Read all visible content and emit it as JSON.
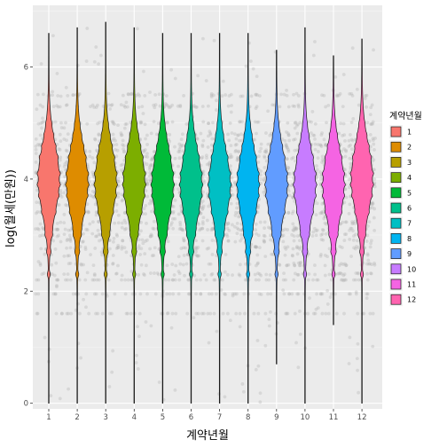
{
  "chart_data": {
    "type": "violin",
    "xlabel": "계약년월",
    "ylabel": "log(월세(만원))",
    "categories": [
      "1",
      "2",
      "3",
      "4",
      "5",
      "6",
      "7",
      "8",
      "9",
      "10",
      "11",
      "12"
    ],
    "yticks": [
      "0",
      "2",
      "4",
      "6"
    ],
    "ylim": [
      -0.1,
      7.1
    ],
    "grid": true,
    "legend": {
      "title": "계약년월",
      "position": "right",
      "entries": [
        "1",
        "2",
        "3",
        "4",
        "5",
        "6",
        "7",
        "8",
        "9",
        "10",
        "11",
        "12"
      ]
    },
    "colors": [
      "#F8766D",
      "#DE8C00",
      "#B79F00",
      "#7CAE00",
      "#00BA38",
      "#00C08B",
      "#00BFC4",
      "#00B4F0",
      "#619CFF",
      "#C77CFF",
      "#F564E3",
      "#FF64B0"
    ],
    "series": [
      {
        "month": "1",
        "min": 0.0,
        "max": 6.6,
        "median": 4.0
      },
      {
        "month": "2",
        "min": 0.0,
        "max": 6.7,
        "median": 3.95
      },
      {
        "month": "3",
        "min": 0.0,
        "max": 6.8,
        "median": 3.95
      },
      {
        "month": "4",
        "min": 0.0,
        "max": 6.7,
        "median": 3.95
      },
      {
        "month": "5",
        "min": 0.0,
        "max": 6.6,
        "median": 3.9
      },
      {
        "month": "6",
        "min": 0.0,
        "max": 6.6,
        "median": 3.9
      },
      {
        "month": "7",
        "min": 0.0,
        "max": 6.6,
        "median": 3.9
      },
      {
        "month": "8",
        "min": 0.0,
        "max": 6.6,
        "median": 3.9
      },
      {
        "month": "9",
        "min": 0.7,
        "max": 6.3,
        "median": 3.9
      },
      {
        "month": "10",
        "min": 0.0,
        "max": 6.7,
        "median": 3.9
      },
      {
        "month": "11",
        "min": 1.4,
        "max": 6.2,
        "median": 3.9
      },
      {
        "month": "12",
        "min": 0.0,
        "max": 6.5,
        "median": 4.0
      }
    ]
  }
}
